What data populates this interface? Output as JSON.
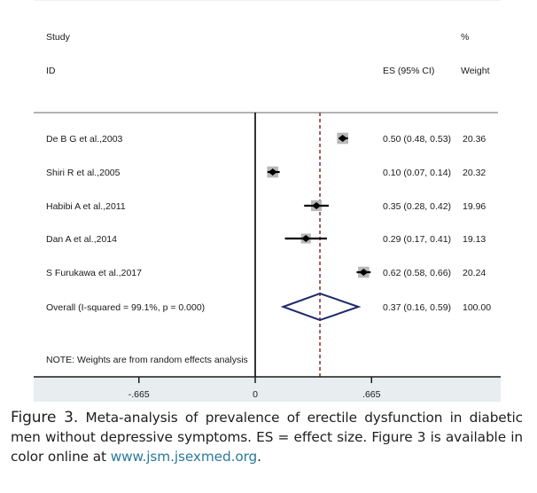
{
  "chart_data": {
    "type": "forest",
    "title": "",
    "headers": {
      "study_top": "Study",
      "study_bottom": "ID",
      "weight_top": "%",
      "es_header": "ES (95% CI)",
      "weight_header": "Weight"
    },
    "studies": [
      {
        "name": "De B G et al.,2003",
        "es": 0.5,
        "lo": 0.48,
        "hi": 0.53,
        "weight": 20.36,
        "es_text": "0.50 (0.48, 0.53)",
        "weight_text": "20.36"
      },
      {
        "name": "Shiri R et al.,2005",
        "es": 0.1,
        "lo": 0.07,
        "hi": 0.14,
        "weight": 20.32,
        "es_text": "0.10 (0.07, 0.14)",
        "weight_text": "20.32"
      },
      {
        "name": "Habibi A et al.,2011",
        "es": 0.35,
        "lo": 0.28,
        "hi": 0.42,
        "weight": 19.96,
        "es_text": "0.35 (0.28, 0.42)",
        "weight_text": "19.96"
      },
      {
        "name": "Dan A et al.,2014",
        "es": 0.29,
        "lo": 0.17,
        "hi": 0.41,
        "weight": 19.13,
        "es_text": "0.29 (0.17, 0.41)",
        "weight_text": "19.13"
      },
      {
        "name": "S Furukawa et al.,2017",
        "es": 0.62,
        "lo": 0.58,
        "hi": 0.66,
        "weight": 20.24,
        "es_text": "0.62 (0.58, 0.66)",
        "weight_text": "20.24"
      }
    ],
    "overall": {
      "label": "Overall  (I-squared = 99.1%, p = 0.000)",
      "es": 0.37,
      "lo": 0.16,
      "hi": 0.59,
      "weight": 100.0,
      "es_text": "0.37 (0.16, 0.59)",
      "weight_text": "100.00"
    },
    "note": "NOTE: Weights are from random effects analysis",
    "xaxis": {
      "ticks": [
        -0.665,
        0,
        0.665
      ],
      "tick_labels": [
        "-.665",
        "0",
        ".665"
      ],
      "range": [
        -0.757,
        1.403
      ]
    },
    "null_line": 0,
    "overall_line": 0.37,
    "colors": {
      "diamond": "#1f2a6b",
      "overall_line": "#8b2a2a",
      "marker": "#000000",
      "weight_box": "#b8b8b8",
      "axis_band": "#e8edf0"
    }
  },
  "caption": {
    "figure_label": "Figure 3.",
    "text": " Meta-analysis of prevalence of erectile dysfunction in diabetic men without depressive symptoms. ES = effect size. Figure 3 is available in color online at ",
    "link": "www.jsm.jsexmed.org",
    "end": "."
  }
}
